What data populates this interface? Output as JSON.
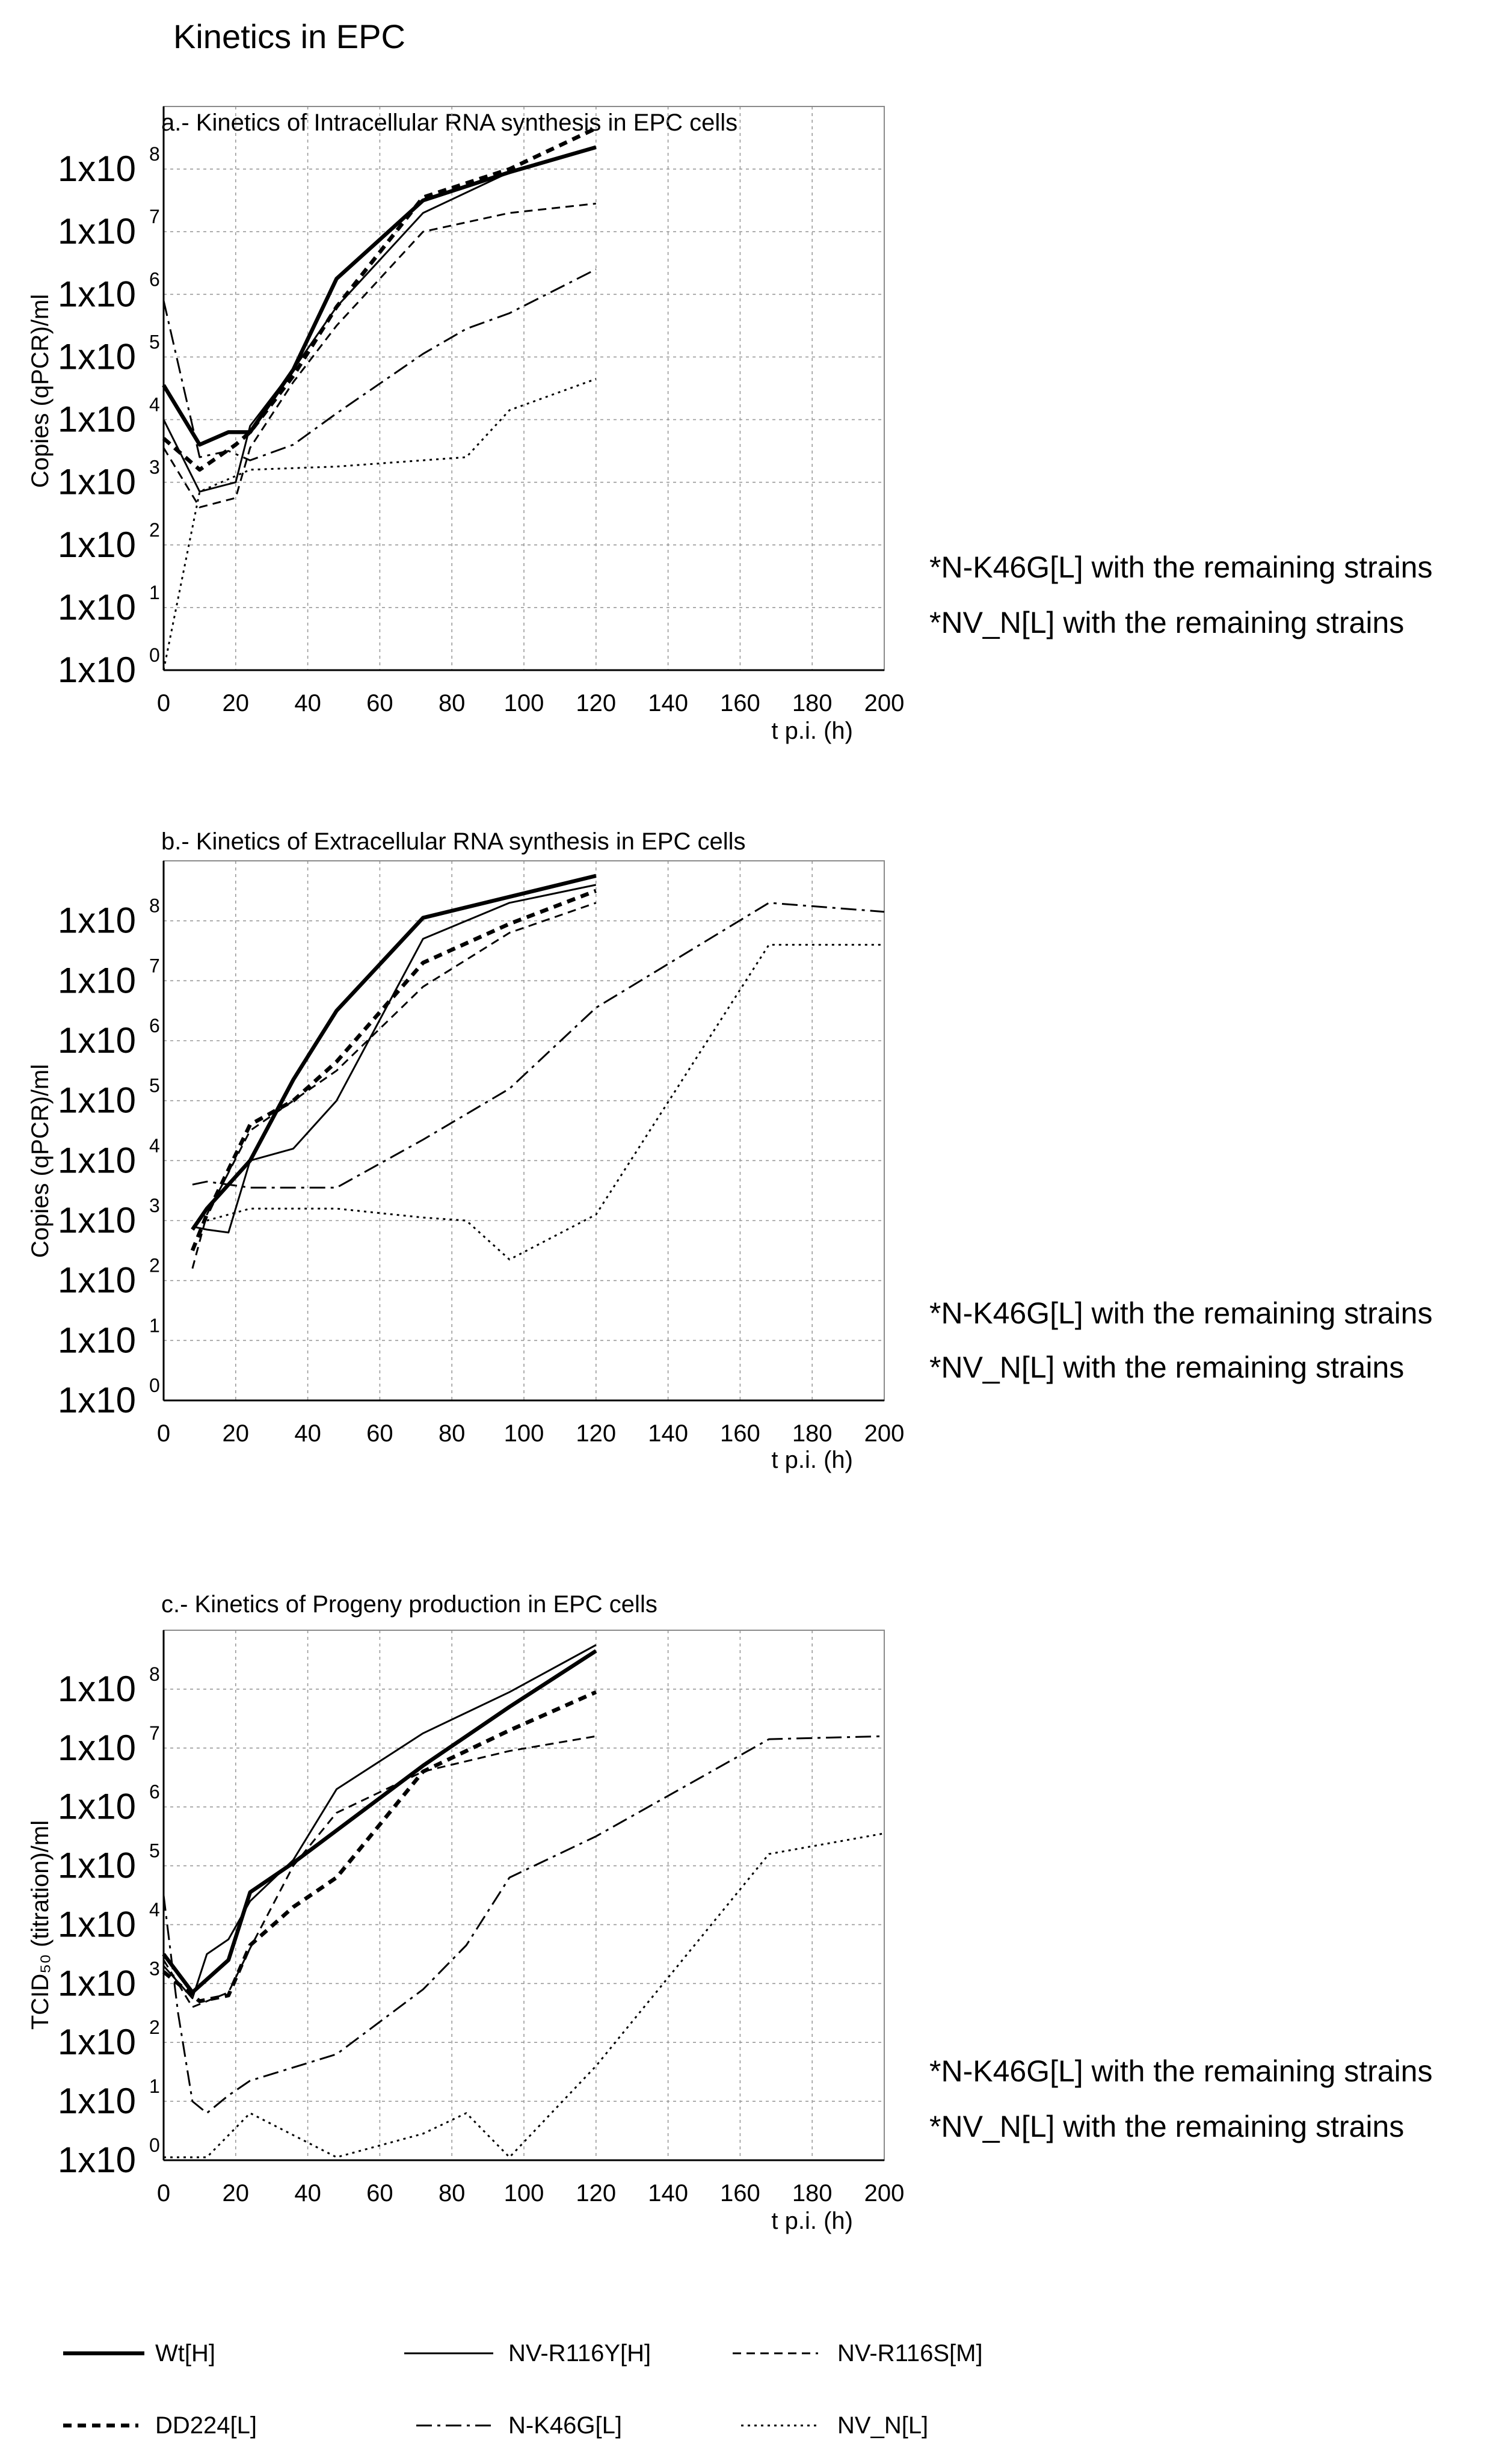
{
  "figure_title": "Kinetics in EPC",
  "notes": [
    "*N-K46G[L] with the remaining strains",
    "*NV_N[L] with the remaining strains"
  ],
  "legend": [
    {
      "label": "Wt[H]",
      "style": "thick-solid"
    },
    {
      "label": "NV-R116Y[H]",
      "style": "thin-solid"
    },
    {
      "label": "NV-R116S[M]",
      "style": "dashed"
    },
    {
      "label": "DD224[L]",
      "style": "thick-dashed"
    },
    {
      "label": "N-K46G[L]",
      "style": "dash-dot"
    },
    {
      "label": "NV_N[L]",
      "style": "dotted"
    }
  ],
  "chart_data": [
    {
      "type": "line",
      "title": "a.- Kinetics of Intracellular RNA synthesis in EPC cells",
      "xlabel": "t p.i. (h)",
      "ylabel": "Copies (qPCR)/ml",
      "y_scale": "log",
      "xlim": [
        0,
        200
      ],
      "ylim_exp": [
        0,
        9
      ],
      "x_ticks": [
        0,
        20,
        40,
        60,
        80,
        100,
        120,
        140,
        160,
        180,
        200
      ],
      "y_ticks": [
        "1x10",
        "1x10",
        "1x10",
        "1x10",
        "1x10",
        "1x10",
        "1x10",
        "1x10",
        "1x10"
      ],
      "y_tick_exps": [
        "0",
        "1",
        "2",
        "3",
        "4",
        "5",
        "6",
        "7",
        "8"
      ],
      "grid": true,
      "series": [
        {
          "name": "Wt[H]",
          "points": [
            [
              0,
              4.55
            ],
            [
              10,
              3.6
            ],
            [
              18,
              3.8
            ],
            [
              24,
              3.8
            ],
            [
              36,
              4.8
            ],
            [
              48,
              6.25
            ],
            [
              72,
              7.5
            ],
            [
              96,
              7.95
            ],
            [
              120,
              8.35
            ]
          ]
        },
        {
          "name": "NV-R116Y[H]",
          "points": [
            [
              0,
              4.0
            ],
            [
              10,
              2.85
            ],
            [
              20,
              3.0
            ],
            [
              24,
              3.9
            ],
            [
              36,
              4.8
            ],
            [
              48,
              5.8
            ],
            [
              72,
              7.3
            ],
            [
              96,
              7.95
            ],
            [
              120,
              8.35
            ]
          ]
        },
        {
          "name": "NV-R116S[M]",
          "points": [
            [
              0,
              3.55
            ],
            [
              10,
              2.6
            ],
            [
              20,
              2.75
            ],
            [
              24,
              3.55
            ],
            [
              36,
              4.6
            ],
            [
              48,
              5.5
            ],
            [
              72,
              7.0
            ],
            [
              96,
              7.3
            ],
            [
              120,
              7.45
            ]
          ]
        },
        {
          "name": "DD224[L]",
          "points": [
            [
              0,
              3.7
            ],
            [
              10,
              3.2
            ],
            [
              20,
              3.6
            ],
            [
              24,
              3.8
            ],
            [
              36,
              4.7
            ],
            [
              48,
              5.8
            ],
            [
              72,
              7.55
            ],
            [
              96,
              8.0
            ],
            [
              120,
              8.65
            ]
          ]
        },
        {
          "name": "N-K46G[L]",
          "points": [
            [
              0,
              5.9
            ],
            [
              10,
              3.4
            ],
            [
              18,
              3.5
            ],
            [
              24,
              3.35
            ],
            [
              36,
              3.6
            ],
            [
              48,
              4.1
            ],
            [
              72,
              5.05
            ],
            [
              84,
              5.45
            ],
            [
              96,
              5.7
            ],
            [
              120,
              6.4
            ]
          ]
        },
        {
          "name": "NV_N[L]",
          "points": [
            [
              0,
              0.0
            ],
            [
              10,
              2.85
            ],
            [
              24,
              3.2
            ],
            [
              48,
              3.25
            ],
            [
              72,
              3.35
            ],
            [
              84,
              3.4
            ],
            [
              96,
              4.15
            ],
            [
              120,
              4.65
            ]
          ]
        }
      ]
    },
    {
      "type": "line",
      "title": "b.- Kinetics of Extracellular RNA synthesis in EPC cells",
      "xlabel": "t p.i. (h)",
      "ylabel": "Copies (qPCR)/ml",
      "y_scale": "log",
      "xlim": [
        0,
        200
      ],
      "ylim_exp": [
        0,
        9
      ],
      "x_ticks": [
        0,
        20,
        40,
        60,
        80,
        100,
        120,
        140,
        160,
        180,
        200
      ],
      "y_ticks": [
        "1x10",
        "1x10",
        "1x10",
        "1x10",
        "1x10",
        "1x10",
        "1x10",
        "1x10",
        "1x10"
      ],
      "y_tick_exps": [
        "0",
        "1",
        "2",
        "3",
        "4",
        "5",
        "6",
        "7",
        "8"
      ],
      "grid": true,
      "series": [
        {
          "name": "Wt[H]",
          "points": [
            [
              8,
              2.85
            ],
            [
              12,
              3.2
            ],
            [
              24,
              4.0
            ],
            [
              36,
              5.35
            ],
            [
              48,
              6.5
            ],
            [
              72,
              8.05
            ],
            [
              96,
              8.4
            ],
            [
              120,
              8.75
            ]
          ]
        },
        {
          "name": "NV-R116Y[H]",
          "points": [
            [
              8,
              2.9
            ],
            [
              12,
              2.85
            ],
            [
              18,
              2.8
            ],
            [
              24,
              4.0
            ],
            [
              36,
              4.2
            ],
            [
              48,
              5.0
            ],
            [
              72,
              7.7
            ],
            [
              96,
              8.3
            ],
            [
              120,
              8.6
            ]
          ]
        },
        {
          "name": "NV-R116S[M]",
          "points": [
            [
              8,
              2.2
            ],
            [
              12,
              3.1
            ],
            [
              24,
              4.5
            ],
            [
              36,
              5.0
            ],
            [
              48,
              5.5
            ],
            [
              72,
              6.9
            ],
            [
              96,
              7.8
            ],
            [
              120,
              8.3
            ]
          ]
        },
        {
          "name": "DD224[L]",
          "points": [
            [
              8,
              2.5
            ],
            [
              12,
              3.1
            ],
            [
              24,
              4.6
            ],
            [
              36,
              5.0
            ],
            [
              48,
              5.65
            ],
            [
              72,
              7.3
            ],
            [
              96,
              7.95
            ],
            [
              120,
              8.5
            ]
          ]
        },
        {
          "name": "N-K46G[L]",
          "points": [
            [
              8,
              3.6
            ],
            [
              12,
              3.65
            ],
            [
              24,
              3.55
            ],
            [
              48,
              3.55
            ],
            [
              72,
              4.35
            ],
            [
              96,
              5.2
            ],
            [
              120,
              6.55
            ],
            [
              168,
              8.3
            ],
            [
              200,
              8.15
            ]
          ]
        },
        {
          "name": "NV_N[L]",
          "points": [
            [
              12,
              3.0
            ],
            [
              24,
              3.2
            ],
            [
              48,
              3.2
            ],
            [
              72,
              3.05
            ],
            [
              84,
              3.0
            ],
            [
              96,
              2.35
            ],
            [
              120,
              3.1
            ],
            [
              168,
              7.6
            ],
            [
              200,
              7.6
            ]
          ]
        }
      ]
    },
    {
      "type": "line",
      "title": "c.- Kinetics of Progeny production in EPC cells",
      "xlabel": "t p.i. (h)",
      "ylabel": "TCID₅₀ (titration)/ml",
      "y_scale": "log",
      "xlim": [
        0,
        200
      ],
      "ylim_exp": [
        0,
        9
      ],
      "x_ticks": [
        0,
        20,
        40,
        60,
        80,
        100,
        120,
        140,
        160,
        180,
        200
      ],
      "y_ticks": [
        "1x10",
        "1x10",
        "1x10",
        "1x10",
        "1x10",
        "1x10",
        "1x10",
        "1x10",
        "1x10"
      ],
      "y_tick_exps": [
        "0",
        "1",
        "2",
        "3",
        "4",
        "5",
        "6",
        "7",
        "8"
      ],
      "grid": true,
      "series": [
        {
          "name": "Wt[H]",
          "points": [
            [
              0,
              3.5
            ],
            [
              8,
              2.85
            ],
            [
              18,
              3.4
            ],
            [
              24,
              4.55
            ],
            [
              36,
              5.05
            ],
            [
              48,
              5.6
            ],
            [
              72,
              6.7
            ],
            [
              96,
              7.7
            ],
            [
              120,
              8.65
            ]
          ]
        },
        {
          "name": "NV-R116Y[H]",
          "points": [
            [
              0,
              3.3
            ],
            [
              8,
              2.75
            ],
            [
              12,
              3.5
            ],
            [
              18,
              3.75
            ],
            [
              24,
              4.4
            ],
            [
              36,
              5.1
            ],
            [
              48,
              6.3
            ],
            [
              72,
              7.25
            ],
            [
              96,
              7.95
            ],
            [
              120,
              8.75
            ]
          ]
        },
        {
          "name": "NV-R116S[M]",
          "points": [
            [
              0,
              3.4
            ],
            [
              8,
              2.6
            ],
            [
              18,
              2.85
            ],
            [
              24,
              3.6
            ],
            [
              36,
              5.0
            ],
            [
              48,
              5.9
            ],
            [
              72,
              6.6
            ],
            [
              96,
              6.95
            ],
            [
              120,
              7.2
            ]
          ]
        },
        {
          "name": "DD224[L]",
          "points": [
            [
              0,
              3.2
            ],
            [
              10,
              2.7
            ],
            [
              18,
              2.8
            ],
            [
              24,
              3.65
            ],
            [
              36,
              4.3
            ],
            [
              48,
              4.8
            ],
            [
              72,
              6.6
            ],
            [
              96,
              7.3
            ],
            [
              120,
              7.95
            ]
          ]
        },
        {
          "name": "N-K46G[L]",
          "points": [
            [
              0,
              4.5
            ],
            [
              4,
              2.5
            ],
            [
              8,
              1.0
            ],
            [
              12,
              0.8
            ],
            [
              18,
              1.1
            ],
            [
              24,
              1.35
            ],
            [
              48,
              1.8
            ],
            [
              72,
              2.9
            ],
            [
              84,
              3.65
            ],
            [
              96,
              4.8
            ],
            [
              120,
              5.5
            ],
            [
              168,
              7.15
            ],
            [
              200,
              7.2
            ]
          ]
        },
        {
          "name": "NV_N[L]",
          "points": [
            [
              0,
              0.05
            ],
            [
              12,
              0.05
            ],
            [
              24,
              0.8
            ],
            [
              48,
              0.05
            ],
            [
              72,
              0.45
            ],
            [
              84,
              0.8
            ],
            [
              96,
              0.05
            ],
            [
              120,
              1.6
            ],
            [
              168,
              5.2
            ],
            [
              200,
              5.55
            ]
          ]
        }
      ]
    }
  ]
}
